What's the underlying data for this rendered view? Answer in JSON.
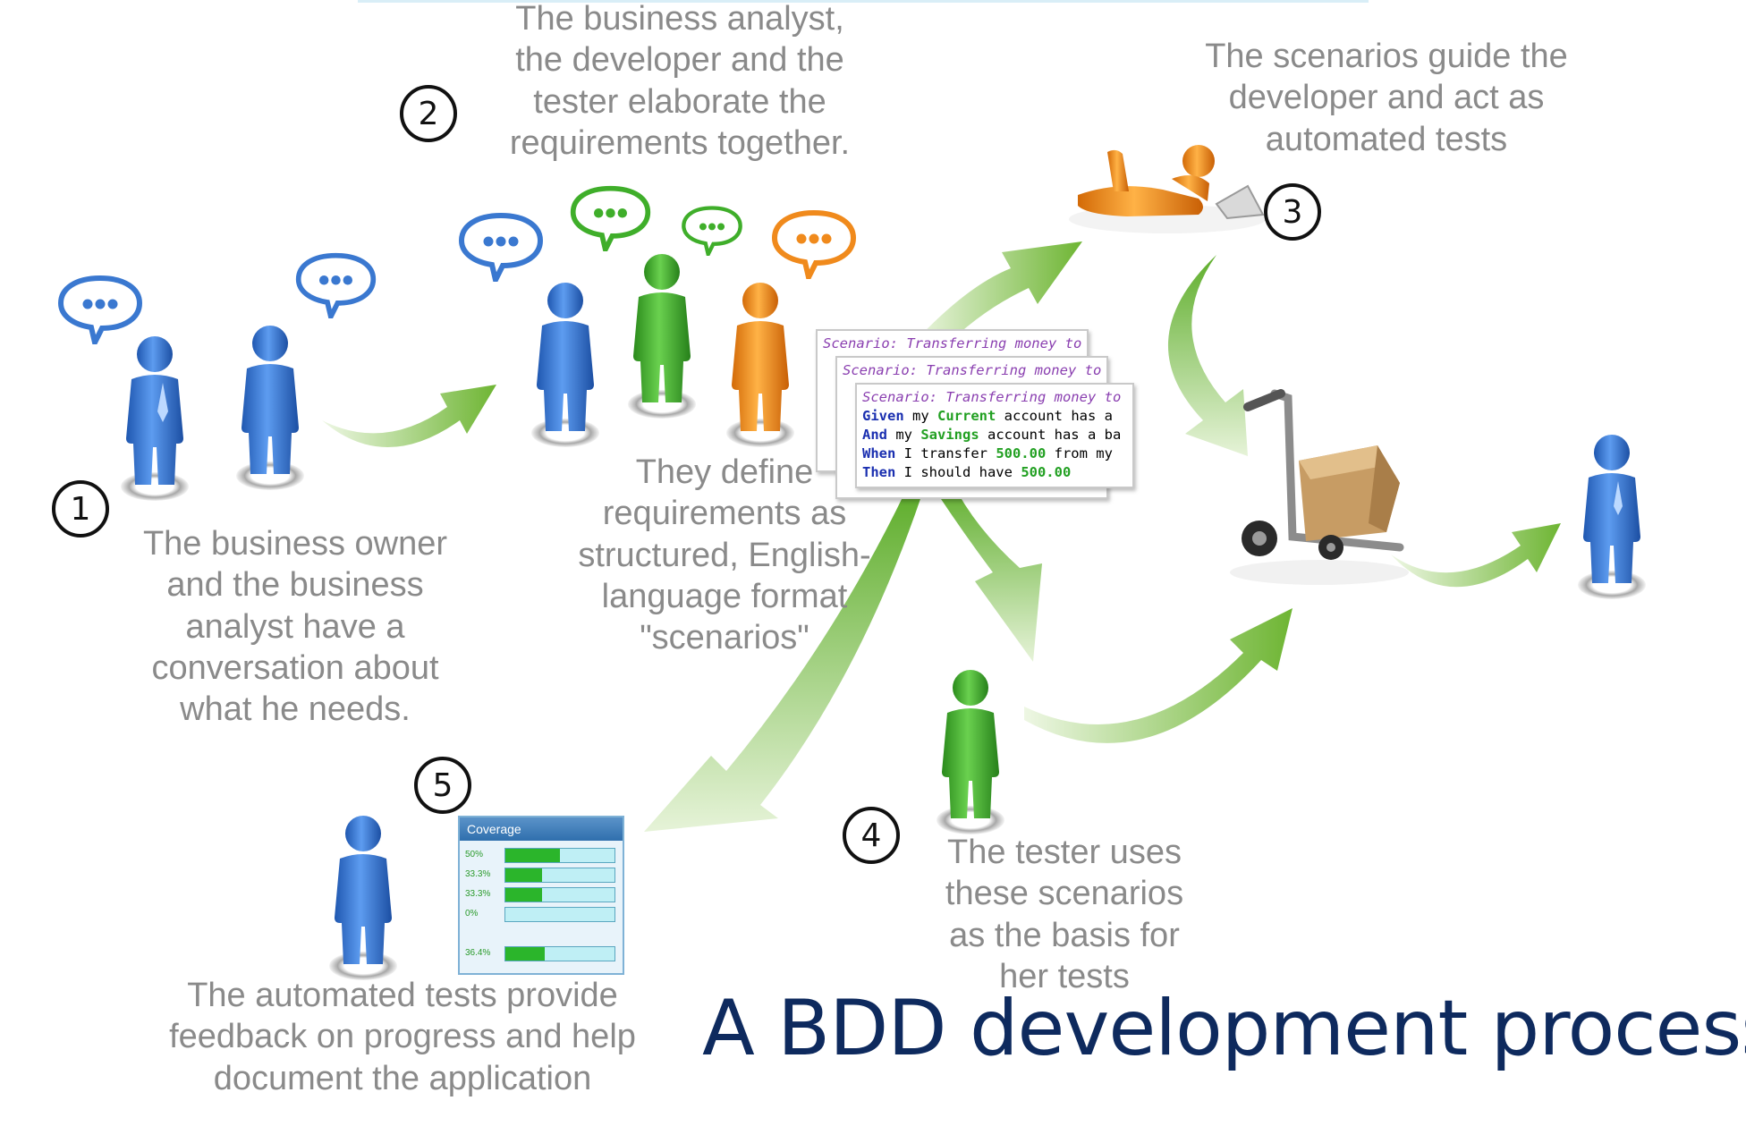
{
  "title": "A BDD development process",
  "steps": [
    {
      "number": "1",
      "caption": "The business owner\nand the business\nanalyst have a\nconversation about\nwhat he needs."
    },
    {
      "number": "2",
      "caption": "The business analyst,\nthe developer and the\ntester elaborate the\nrequirements together."
    },
    {
      "number": "3",
      "caption": "The scenarios guide the\ndeveloper and act as\nautomated tests"
    },
    {
      "number": "4",
      "caption": "The tester uses\nthese scenarios\nas the basis for\nher tests"
    },
    {
      "number": "5",
      "caption": "The automated tests provide\nfeedback on progress and help\ndocument the application"
    }
  ],
  "scenarios_caption": "They define\nrequirements as\nstructured, English-\nlanguage format\n\"scenarios\"",
  "scenario_card": {
    "title": "Scenario: Transferring money to",
    "lines": [
      {
        "kw": "Given",
        "pre": " my ",
        "hl": "Current",
        "post": " account has a"
      },
      {
        "kw": "And",
        "pre": " my ",
        "hl": "Savings",
        "post": " account has a ba"
      },
      {
        "kw": "When",
        "pre": " I transfer ",
        "hl": "500.00",
        "post": " from my"
      },
      {
        "kw": "Then",
        "pre": " I should have ",
        "hl": "500.00",
        "post": ""
      }
    ]
  },
  "coverage": {
    "header": "Coverage",
    "rows": [
      {
        "label": "50%",
        "value": 0.5
      },
      {
        "label": "33.3%",
        "value": 0.333
      },
      {
        "label": "33.3%",
        "value": 0.333
      },
      {
        "label": "0%",
        "value": 0
      },
      {
        "label": "36.4%",
        "value": 0.364
      }
    ]
  },
  "colors": {
    "blue_person": "#3a78d0",
    "green_person": "#3fae2a",
    "orange_person": "#f08a1c",
    "arrow_green": "#7bbf3a",
    "title": "#0e2a5e",
    "caption": "#8a8a8a"
  }
}
